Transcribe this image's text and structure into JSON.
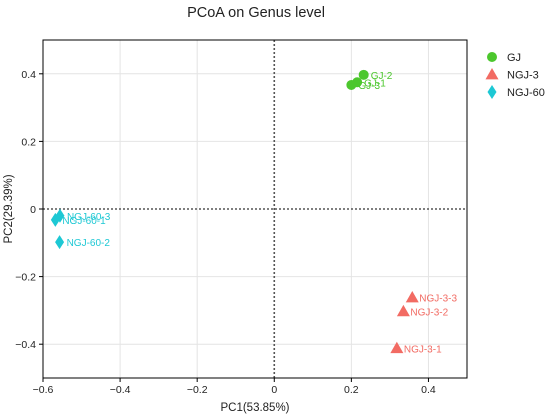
{
  "chart_data": {
    "type": "scatter",
    "title": "PCoA on Genus level",
    "xlabel": "PC1(53.85%)",
    "ylabel": "PC2(29.39%)",
    "xlim": [
      -0.6,
      0.5
    ],
    "ylim": [
      -0.5,
      0.5
    ],
    "xticks": [
      -0.6,
      -0.4,
      -0.2,
      0,
      0.2,
      0.4
    ],
    "yticks": [
      -0.4,
      -0.2,
      0,
      0.2,
      0.4
    ],
    "xtick_labels": [
      "−0.6",
      "−0.4",
      "−0.2",
      "0",
      "0.2",
      "0.4"
    ],
    "ytick_labels": [
      "−0.4",
      "−0.2",
      "0",
      "0.2",
      "0.4"
    ],
    "grid": true,
    "reference_lines": {
      "x": 0,
      "y": 0,
      "style": "dotted"
    },
    "legend_position": "top-right",
    "series": [
      {
        "name": "GJ",
        "marker": "circle",
        "color": "#4cc72d",
        "points": [
          {
            "label": "GJ-2",
            "x": 0.232,
            "y": 0.397
          },
          {
            "label": "GJ-1",
            "x": 0.215,
            "y": 0.375
          },
          {
            "label": "GJ-3",
            "x": 0.2,
            "y": 0.367
          }
        ]
      },
      {
        "name": "NGJ-3",
        "marker": "triangle",
        "color": "#f26b63",
        "points": [
          {
            "label": "NGJ-3-3",
            "x": 0.358,
            "y": -0.262
          },
          {
            "label": "NGJ-3-2",
            "x": 0.335,
            "y": -0.303
          },
          {
            "label": "NGJ-3-1",
            "x": 0.318,
            "y": -0.412
          }
        ]
      },
      {
        "name": "NGJ-60",
        "marker": "diamond",
        "color": "#1dc8d4",
        "points": [
          {
            "label": "NGJ-60-3",
            "x": -0.556,
            "y": -0.02
          },
          {
            "label": "NGJ-60-1",
            "x": -0.568,
            "y": -0.032
          },
          {
            "label": "NGJ-60-2",
            "x": -0.557,
            "y": -0.098
          }
        ]
      }
    ]
  }
}
